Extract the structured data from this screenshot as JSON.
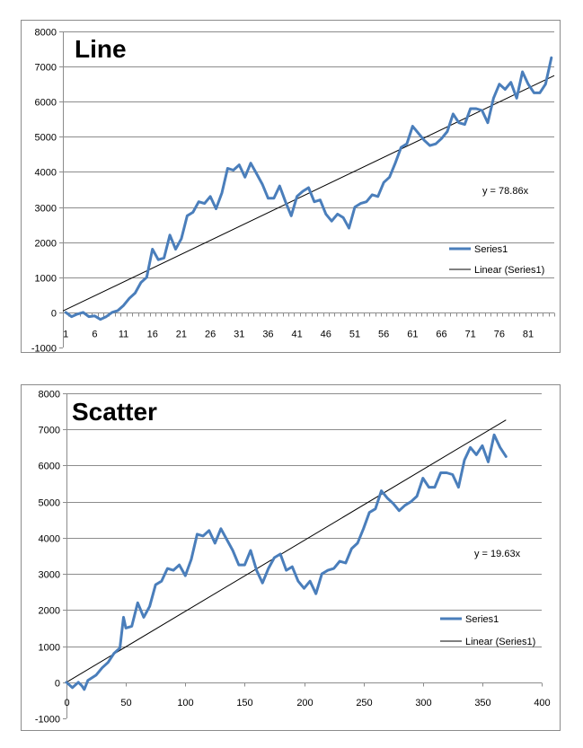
{
  "chart_data": [
    {
      "type": "line",
      "title": "Line",
      "xlabel": "",
      "ylabel": "",
      "ylim": [
        -1000,
        8000
      ],
      "y_ticks": [
        -1000,
        0,
        1000,
        2000,
        3000,
        4000,
        5000,
        6000,
        7000,
        8000
      ],
      "x_tick_labels": [
        "1",
        "6",
        "11",
        "16",
        "21",
        "26",
        "31",
        "36",
        "41",
        "46",
        "51",
        "56",
        "61",
        "66",
        "71",
        "76",
        "81"
      ],
      "grid": "horizontal",
      "legend_position": "right",
      "legend": [
        "Series1",
        "Linear (Series1)"
      ],
      "trendline_equation": "y = 78.86x",
      "trendline_slope": 78.86,
      "series": [
        {
          "name": "Series1",
          "x": [
            1,
            2,
            3,
            4,
            5,
            6,
            7,
            8,
            9,
            10,
            11,
            12,
            13,
            14,
            15,
            16,
            17,
            18,
            19,
            20,
            21,
            22,
            23,
            24,
            25,
            26,
            27,
            28,
            29,
            30,
            31,
            32,
            33,
            34,
            35,
            36,
            37,
            38,
            39,
            40,
            41,
            42,
            43,
            44,
            45,
            46,
            47,
            48,
            49,
            50,
            51,
            52,
            53,
            54,
            55,
            56,
            57,
            58,
            59,
            60,
            61,
            62,
            63,
            64,
            65,
            66,
            67,
            68,
            69,
            70,
            71,
            72,
            73,
            74,
            75,
            76,
            77,
            78,
            79,
            80,
            81,
            82,
            83,
            84,
            85
          ],
          "values": [
            0,
            -120,
            -50,
            0,
            -120,
            -100,
            -200,
            -120,
            0,
            50,
            200,
            400,
            550,
            850,
            1000,
            1800,
            1500,
            1550,
            2200,
            1800,
            2100,
            2750,
            2850,
            3150,
            3100,
            3300,
            2950,
            3400,
            4100,
            4050,
            4200,
            3850,
            4250,
            3950,
            3650,
            3250,
            3250,
            3600,
            3150,
            2750,
            3300,
            3450,
            3550,
            3150,
            3200,
            2800,
            2600,
            2800,
            2700,
            2400,
            3000,
            3100,
            3150,
            3350,
            3300,
            3700,
            3850,
            4250,
            4700,
            4800,
            5300,
            5100,
            4900,
            4750,
            4800,
            4950,
            5150,
            5650,
            5400,
            5350,
            5800,
            5800,
            5750,
            5400,
            6100,
            6500,
            6350,
            6550,
            6100,
            6850,
            6500,
            6250,
            6250,
            6500,
            7250
          ]
        }
      ]
    },
    {
      "type": "scatter",
      "title": "Scatter",
      "xlabel": "",
      "ylabel": "",
      "xlim": [
        0,
        400
      ],
      "ylim": [
        -1000,
        8000
      ],
      "x_ticks": [
        0,
        50,
        100,
        150,
        200,
        250,
        300,
        350,
        400
      ],
      "y_ticks": [
        -1000,
        0,
        1000,
        2000,
        3000,
        4000,
        5000,
        6000,
        7000,
        8000
      ],
      "grid": "horizontal",
      "legend_position": "right",
      "legend": [
        "Series1",
        "Linear (Series1)"
      ],
      "trendline_equation": "y = 19.63x",
      "trendline_slope": 19.63,
      "series": [
        {
          "name": "Series1",
          "x": [
            0,
            5,
            10,
            13,
            15,
            18,
            25,
            30,
            35,
            40,
            45,
            48,
            50,
            55,
            60,
            65,
            70,
            75,
            80,
            85,
            90,
            95,
            100,
            105,
            110,
            115,
            120,
            125,
            130,
            135,
            140,
            145,
            150,
            155,
            160,
            165,
            170,
            175,
            180,
            185,
            190,
            195,
            200,
            205,
            210,
            215,
            220,
            225,
            230,
            235,
            240,
            245,
            250,
            255,
            260,
            265,
            270,
            275,
            280,
            285,
            290,
            295,
            300,
            305,
            310,
            315,
            320,
            325,
            330,
            335,
            340,
            345,
            350,
            355,
            360,
            365,
            370
          ],
          "values": [
            0,
            -150,
            0,
            -100,
            -200,
            50,
            200,
            400,
            550,
            800,
            950,
            1800,
            1500,
            1550,
            2200,
            1800,
            2100,
            2700,
            2800,
            3150,
            3100,
            3250,
            2950,
            3400,
            4100,
            4050,
            4200,
            3850,
            4250,
            3950,
            3650,
            3250,
            3250,
            3650,
            3100,
            2750,
            3150,
            3450,
            3550,
            3100,
            3200,
            2800,
            2600,
            2800,
            2450,
            3000,
            3100,
            3150,
            3350,
            3300,
            3700,
            3850,
            4250,
            4700,
            4800,
            5300,
            5100,
            4950,
            4750,
            4900,
            5000,
            5150,
            5650,
            5400,
            5400,
            5800,
            5800,
            5750,
            5400,
            6150,
            6500,
            6300,
            6550,
            6100,
            6850,
            6500,
            6250
          ]
        }
      ]
    }
  ]
}
